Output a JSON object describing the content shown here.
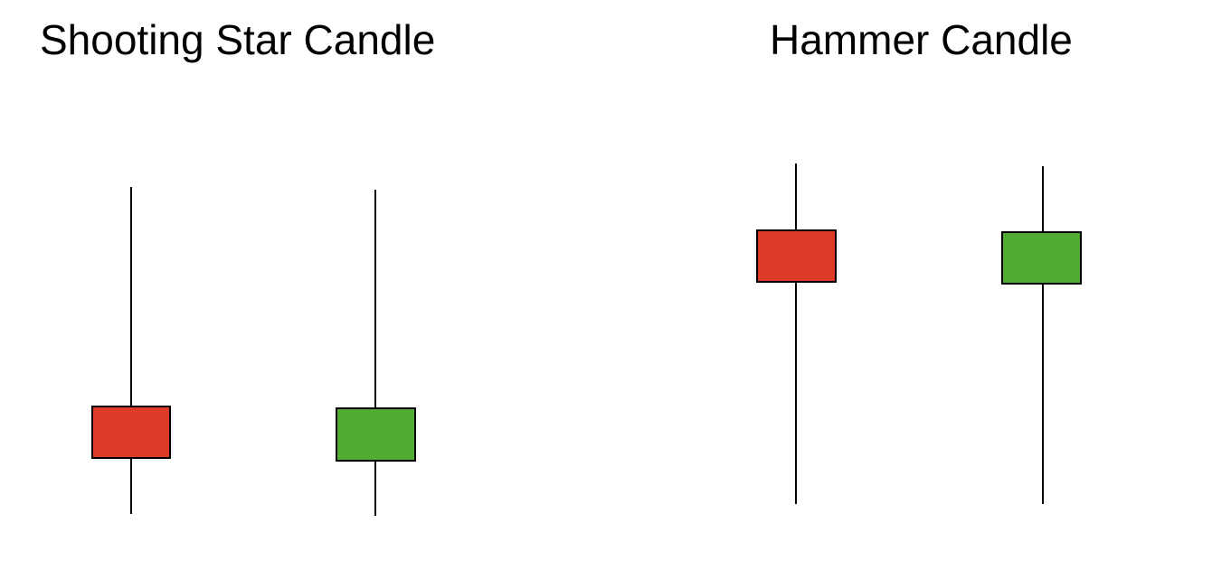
{
  "titles": {
    "shooting_star": "Shooting Star Candle",
    "hammer": "Hammer Candle"
  },
  "colors": {
    "bearish": "#dd3b27",
    "bullish": "#52ac32",
    "outline": "#000000",
    "background": "#ffffff"
  }
}
